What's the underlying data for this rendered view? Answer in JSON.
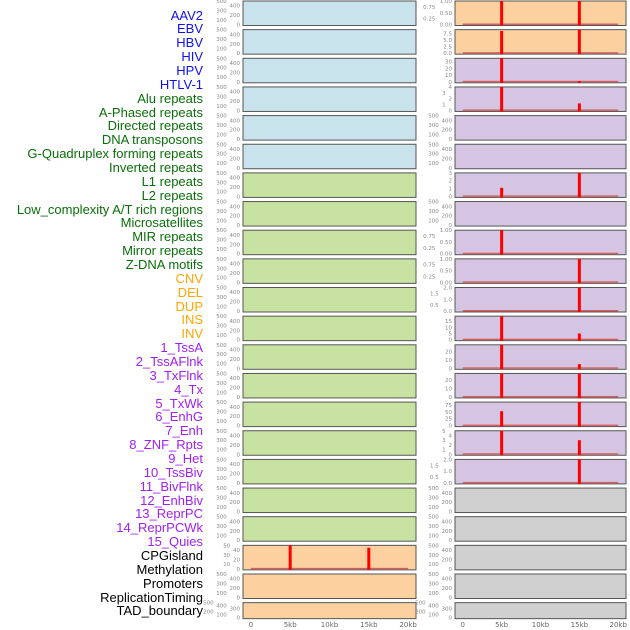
{
  "colors": {
    "blue": "#1010ee",
    "green": "#0a6e0a",
    "orange": "#ffa500",
    "purple": "#a020f0",
    "black": "#000000",
    "bar": "#ff0000",
    "baseline": "#d46060",
    "frame": "#555555",
    "tick": "#888888"
  },
  "labels": [
    {
      "t": "AAV2",
      "c": "blue"
    },
    {
      "t": "EBV",
      "c": "blue"
    },
    {
      "t": "HBV",
      "c": "blue"
    },
    {
      "t": "HIV",
      "c": "blue"
    },
    {
      "t": "HPV",
      "c": "blue"
    },
    {
      "t": "HTLV-1",
      "c": "blue"
    },
    {
      "t": "Alu repeats",
      "c": "green"
    },
    {
      "t": "A-Phased repeats",
      "c": "green"
    },
    {
      "t": "Directed repeats",
      "c": "green"
    },
    {
      "t": "DNA transposons",
      "c": "green"
    },
    {
      "t": "G-Quadruplex forming repeats",
      "c": "green"
    },
    {
      "t": "Inverted repeats",
      "c": "green"
    },
    {
      "t": "L1 repeats",
      "c": "green"
    },
    {
      "t": "L2 repeats",
      "c": "green"
    },
    {
      "t": "Low_complexity A/T rich regions",
      "c": "green"
    },
    {
      "t": "Microsatellites",
      "c": "green"
    },
    {
      "t": "MIR repeats",
      "c": "green"
    },
    {
      "t": "Mirror repeats",
      "c": "green"
    },
    {
      "t": "Z-DNA motifs",
      "c": "green"
    },
    {
      "t": "CNV",
      "c": "orange"
    },
    {
      "t": "DEL",
      "c": "orange"
    },
    {
      "t": "DUP",
      "c": "orange"
    },
    {
      "t": "INS",
      "c": "orange"
    },
    {
      "t": "INV",
      "c": "orange"
    },
    {
      "t": "1_TssA",
      "c": "purple"
    },
    {
      "t": "2_TssAFlnk",
      "c": "purple"
    },
    {
      "t": "3_TxFlnk",
      "c": "purple"
    },
    {
      "t": "4_Tx",
      "c": "purple"
    },
    {
      "t": "5_TxWk",
      "c": "purple"
    },
    {
      "t": "6_EnhG",
      "c": "purple"
    },
    {
      "t": "7_Enh",
      "c": "purple"
    },
    {
      "t": "8_ZNF_Rpts",
      "c": "purple"
    },
    {
      "t": "9_Het",
      "c": "purple"
    },
    {
      "t": "10_TssBiv",
      "c": "purple"
    },
    {
      "t": "11_BivFlnk",
      "c": "purple"
    },
    {
      "t": "12_EnhBiv",
      "c": "purple"
    },
    {
      "t": "13_ReprPC",
      "c": "purple"
    },
    {
      "t": "14_ReprPCWk",
      "c": "purple"
    },
    {
      "t": "15_Quies",
      "c": "purple"
    },
    {
      "t": "CPGisland",
      "c": "black"
    },
    {
      "t": "Methylation",
      "c": "black"
    },
    {
      "t": "Promoters",
      "c": "black"
    },
    {
      "t": "ReplicationTiming",
      "c": "black"
    },
    {
      "t": "TAD_boundary",
      "c": "black"
    }
  ],
  "chart_data": {
    "type": "bar",
    "x_ticks": [
      "0",
      "5kb",
      "10kb",
      "15kb",
      "20kb"
    ],
    "x_tick_values": [
      0,
      5000,
      10000,
      15000,
      20000
    ],
    "xlim": [
      -1000,
      21000
    ],
    "bg": {
      "blue": "#c8e3ec",
      "green": "#c8e2a2",
      "orange": "#fdd09f",
      "purple": "#d5c5e2",
      "gray": "#d0d0d0"
    },
    "columns": [
      {
        "rows": [
          {
            "bg": "blue",
            "ymax": 500,
            "yticks": [
              "0",
              "100",
              "200",
              "300",
              "400",
              "500"
            ],
            "bars": []
          },
          {
            "bg": "blue",
            "ymax": 500,
            "yticks": [
              "0",
              "100",
              "200",
              "300",
              "400",
              "500"
            ],
            "bars": []
          },
          {
            "bg": "blue",
            "ymax": 500,
            "yticks": [
              "0",
              "100",
              "200",
              "300",
              "400",
              "500"
            ],
            "bars": []
          },
          {
            "bg": "blue",
            "ymax": 500,
            "yticks": [
              "0",
              "100",
              "200",
              "300",
              "400",
              "500"
            ],
            "bars": []
          },
          {
            "bg": "blue",
            "ymax": 500,
            "yticks": [
              "0",
              "100",
              "200",
              "300",
              "400",
              "500"
            ],
            "bars": []
          },
          {
            "bg": "blue",
            "ymax": 500,
            "yticks": [
              "0",
              "100",
              "200",
              "300",
              "400",
              "500"
            ],
            "bars": []
          },
          {
            "bg": "green",
            "ymax": 500,
            "yticks": [
              "0",
              "100",
              "200",
              "300",
              "400",
              "500"
            ],
            "bars": []
          },
          {
            "bg": "green",
            "ymax": 500,
            "yticks": [
              "0",
              "100",
              "200",
              "300",
              "400",
              "500"
            ],
            "bars": []
          },
          {
            "bg": "green",
            "ymax": 500,
            "yticks": [
              "0",
              "100",
              "200",
              "300",
              "400",
              "500"
            ],
            "bars": []
          },
          {
            "bg": "green",
            "ymax": 500,
            "yticks": [
              "0",
              "100",
              "200",
              "300",
              "400",
              "500"
            ],
            "bars": []
          },
          {
            "bg": "green",
            "ymax": 500,
            "yticks": [
              "0",
              "100",
              "200",
              "300",
              "400",
              "500"
            ],
            "bars": []
          },
          {
            "bg": "green",
            "ymax": 500,
            "yticks": [
              "0",
              "100",
              "200",
              "300",
              "400",
              "500"
            ],
            "bars": []
          },
          {
            "bg": "green",
            "ymax": 500,
            "yticks": [
              "0",
              "100",
              "200",
              "300",
              "400",
              "500"
            ],
            "bars": []
          },
          {
            "bg": "green",
            "ymax": 500,
            "yticks": [
              "0",
              "100",
              "200",
              "300",
              "400",
              "500"
            ],
            "bars": []
          },
          {
            "bg": "green",
            "ymax": 500,
            "yticks": [
              "0",
              "100",
              "200",
              "300",
              "400",
              "500"
            ],
            "bars": []
          },
          {
            "bg": "green",
            "ymax": 500,
            "yticks": [
              "0",
              "100",
              "200",
              "300",
              "400",
              "500"
            ],
            "bars": []
          },
          {
            "bg": "green",
            "ymax": 500,
            "yticks": [
              "0",
              "100",
              "200",
              "300",
              "400",
              "500"
            ],
            "bars": []
          },
          {
            "bg": "green",
            "ymax": 500,
            "yticks": [
              "0",
              "100",
              "200",
              "300",
              "400",
              "500"
            ],
            "bars": []
          },
          {
            "bg": "green",
            "ymax": 500,
            "yticks": [
              "0",
              "100",
              "200",
              "300",
              "400",
              "500"
            ],
            "bars": []
          },
          {
            "bg": "orange",
            "ymax": 50,
            "yticks": [
              "0",
              "10",
              "20",
              "30",
              "40",
              "50"
            ],
            "bars": [
              [
                5000,
                50
              ],
              [
                15000,
                45
              ]
            ],
            "baseline": true
          },
          {
            "bg": "orange",
            "ymax": 500,
            "yticks": [
              "0",
              "100",
              "200",
              "300",
              "400",
              "500"
            ],
            "bars": []
          },
          {
            "bg": "orange",
            "ymax": 500,
            "yticks": [
              "0",
              "100",
              "200",
              "300",
              "400",
              "500"
            ],
            "bars": []
          }
        ]
      },
      {
        "rows": [
          {
            "bg": "orange",
            "ymax": 1,
            "yticks": [
              "0.00",
              "0.25",
              "0.50",
              "0.75",
              "1.00"
            ],
            "bars": [
              [
                5000,
                1
              ],
              [
                15000,
                1
              ]
            ],
            "baseline": true
          },
          {
            "bg": "orange",
            "ymax": 9,
            "yticks": [
              "0.0",
              "2.5",
              "5.0",
              "7.5"
            ],
            "bars": [
              [
                5000,
                8.5
              ],
              [
                15000,
                9
              ]
            ],
            "baseline": true
          },
          {
            "bg": "purple",
            "ymax": 35,
            "yticks": [
              "0",
              "10",
              "20",
              "30"
            ],
            "bars": [
              [
                5000,
                35
              ],
              [
                15000,
                1
              ]
            ],
            "baseline": true
          },
          {
            "bg": "purple",
            "ymax": 4,
            "yticks": [
              "0",
              "1",
              "2",
              "3",
              "4"
            ],
            "bars": [
              [
                5000,
                4
              ],
              [
                15000,
                1.2
              ]
            ],
            "baseline": true
          },
          {
            "bg": "purple",
            "ymax": 500,
            "yticks": [
              "0",
              "100",
              "200",
              "300",
              "400",
              "500"
            ],
            "bars": []
          },
          {
            "bg": "purple",
            "ymax": 500,
            "yticks": [
              "0",
              "100",
              "200",
              "300",
              "400",
              "500"
            ],
            "bars": []
          },
          {
            "bg": "purple",
            "ymax": 3,
            "yticks": [
              "0",
              "1",
              "2",
              "3"
            ],
            "bars": [
              [
                5000,
                1.1
              ],
              [
                15000,
                3
              ]
            ],
            "baseline": true
          },
          {
            "bg": "purple",
            "ymax": 500,
            "yticks": [
              "0",
              "100",
              "200",
              "300",
              "400",
              "500"
            ],
            "bars": []
          },
          {
            "bg": "purple",
            "ymax": 1,
            "yticks": [
              "0.00",
              "0.25",
              "0.50",
              "0.75",
              "1.00"
            ],
            "bars": [
              [
                5000,
                1
              ]
            ],
            "baseline": true
          },
          {
            "bg": "purple",
            "ymax": 1,
            "yticks": [
              "0.00",
              "0.25",
              "0.50",
              "0.75",
              "1.00"
            ],
            "bars": [
              [
                15000,
                1
              ]
            ],
            "baseline": true
          },
          {
            "bg": "purple",
            "ymax": 2,
            "yticks": [
              "0.0",
              "0.5",
              "1.0",
              "1.5",
              "2.0"
            ],
            "bars": [
              [
                15000,
                2
              ]
            ],
            "baseline": true
          },
          {
            "bg": "purple",
            "ymax": 19,
            "yticks": [
              "0",
              "5",
              "10",
              "15"
            ],
            "bars": [
              [
                5000,
                19
              ],
              [
                15000,
                5
              ]
            ],
            "baseline": true
          },
          {
            "bg": "purple",
            "ymax": 28,
            "yticks": [
              "0",
              "10",
              "20"
            ],
            "bars": [
              [
                5000,
                28
              ],
              [
                15000,
                5
              ]
            ],
            "baseline": true
          },
          {
            "bg": "purple",
            "ymax": 28,
            "yticks": [
              "0",
              "10",
              "20"
            ],
            "bars": [
              [
                5000,
                28
              ],
              [
                15000,
                28
              ]
            ],
            "baseline": true
          },
          {
            "bg": "purple",
            "ymax": 85,
            "yticks": [
              "0",
              "25",
              "50",
              "75"
            ],
            "bars": [
              [
                5000,
                52
              ],
              [
                15000,
                85
              ]
            ],
            "baseline": true
          },
          {
            "bg": "purple",
            "ymax": 5,
            "yticks": [
              "0",
              "1",
              "2",
              "3",
              "4",
              "5"
            ],
            "bars": [
              [
                5000,
                5
              ],
              [
                15000,
                3
              ]
            ],
            "baseline": true
          },
          {
            "bg": "purple",
            "ymax": 2,
            "yticks": [
              "0.0",
              "0.5",
              "1.0",
              "1.5",
              "2.0"
            ],
            "bars": [
              [
                15000,
                2
              ]
            ],
            "baseline": true
          },
          {
            "bg": "gray",
            "ymax": 500,
            "yticks": [
              "0",
              "100",
              "200",
              "300",
              "400",
              "500"
            ],
            "bars": []
          },
          {
            "bg": "gray",
            "ymax": 500,
            "yticks": [
              "0",
              "100",
              "200",
              "300",
              "400",
              "500"
            ],
            "bars": []
          },
          {
            "bg": "gray",
            "ymax": 500,
            "yticks": [
              "0",
              "100",
              "200",
              "300",
              "400",
              "500"
            ],
            "bars": []
          },
          {
            "bg": "gray",
            "ymax": 500,
            "yticks": [
              "0",
              "100",
              "200",
              "300",
              "400",
              "500"
            ],
            "bars": []
          },
          {
            "bg": "gray",
            "ymax": 500,
            "yticks": [
              "0",
              "100",
              "200",
              "300",
              "400",
              "500"
            ],
            "bars": []
          }
        ]
      }
    ]
  }
}
